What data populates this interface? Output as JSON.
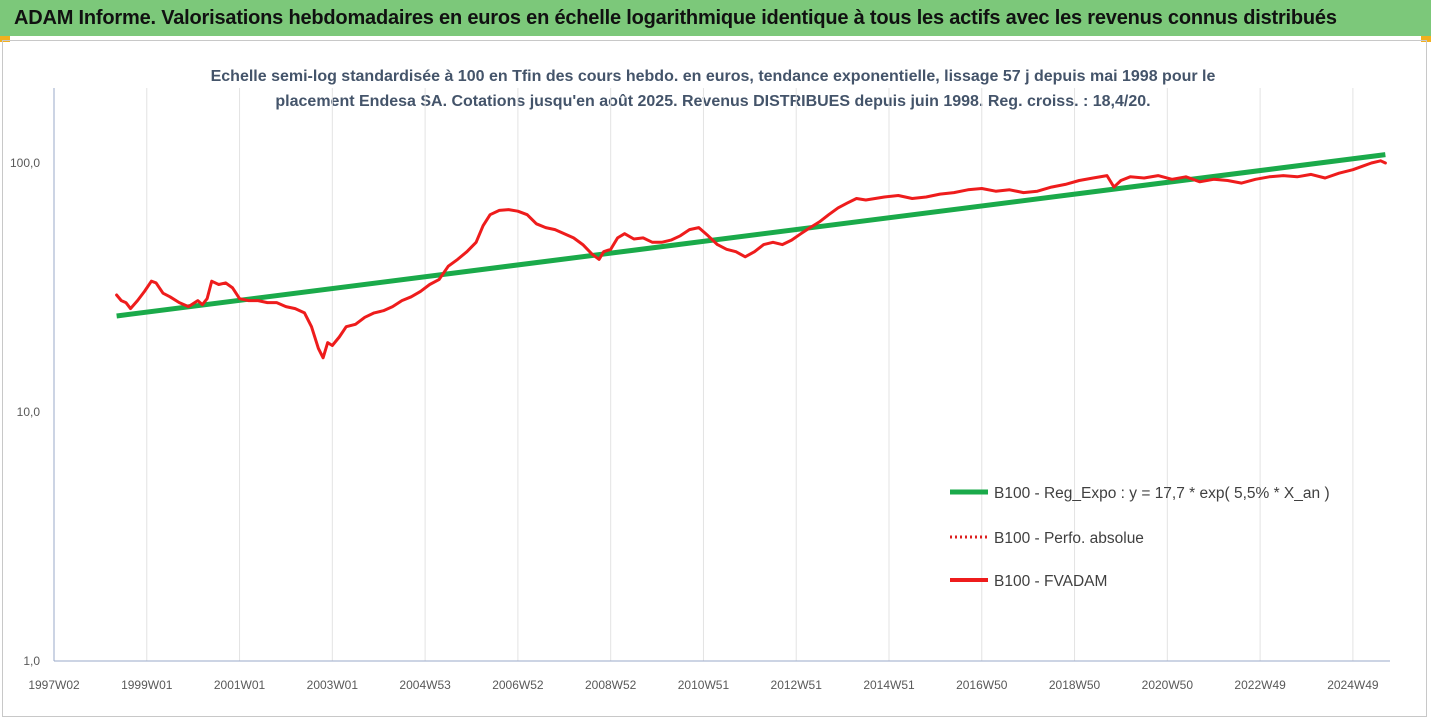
{
  "header": {
    "banner_title": "ADAM Informe. Valorisations hebdomadaires en euros en échelle logarithmique identique à tous les actifs avec les revenus connus distribués"
  },
  "colors": {
    "banner_bg": "#7cc87a",
    "regression": "#1aaa4a",
    "fvadam": "#ee1c1c",
    "perf_absolue": "#dd1f1f",
    "gridline": "#e3e3e3",
    "axis": "#9aa8c8"
  },
  "chart_data": {
    "type": "line",
    "title_lines": [
      "Echelle semi-log standardisée à 100 en Tfin des cours hebdo. en euros, tendance exponentielle, lissage 57 j depuis mai 1998 pour le",
      "placement Endesa SA. Cotations jusqu'en août 2025. Revenus DISTRIBUES depuis juin 1998. Reg. croiss. : 18,4/20."
    ],
    "y_scale": "log",
    "ylim": [
      1,
      200
    ],
    "y_ticks": [
      {
        "value": 1,
        "label": "1,0"
      },
      {
        "value": 10,
        "label": "10,0"
      },
      {
        "value": 100,
        "label": "100,0"
      }
    ],
    "xlim": [
      1997.0,
      2025.8
    ],
    "x_ticks": [
      {
        "value": 1997.0,
        "label": "1997W02"
      },
      {
        "value": 1999.0,
        "label": "1999W01"
      },
      {
        "value": 2001.0,
        "label": "2001W01"
      },
      {
        "value": 2003.0,
        "label": "2003W01"
      },
      {
        "value": 2005.0,
        "label": "2004W53"
      },
      {
        "value": 2007.0,
        "label": "2006W52"
      },
      {
        "value": 2009.0,
        "label": "2008W52"
      },
      {
        "value": 2011.0,
        "label": "2010W51"
      },
      {
        "value": 2013.0,
        "label": "2012W51"
      },
      {
        "value": 2015.0,
        "label": "2014W51"
      },
      {
        "value": 2017.0,
        "label": "2016W50"
      },
      {
        "value": 2019.0,
        "label": "2018W50"
      },
      {
        "value": 2021.0,
        "label": "2020W50"
      },
      {
        "value": 2023.0,
        "label": "2022W49"
      },
      {
        "value": 2025.0,
        "label": "2024W49"
      }
    ],
    "grid": "vertical",
    "legend_position": "bottom-right",
    "series": [
      {
        "name": "B100 - Reg_Expo : y = 17,7 * exp( 5,5% *  X_an )",
        "style": "solid-thick",
        "color": "#1aaa4a",
        "x": [
          1998.35,
          2025.7
        ],
        "y": [
          24.3,
          108
        ]
      },
      {
        "name": "B100 - Perfo. absolue",
        "style": "dotted",
        "color": "#dd1f1f",
        "x": [],
        "y": []
      },
      {
        "name": "B100 - FVADAM",
        "style": "solid",
        "color": "#ee1c1c",
        "x": [
          1998.35,
          1998.45,
          1998.55,
          1998.65,
          1998.8,
          1998.95,
          1999.1,
          1999.2,
          1999.35,
          1999.5,
          1999.7,
          1999.9,
          2000.1,
          2000.2,
          2000.3,
          2000.4,
          2000.55,
          2000.7,
          2000.85,
          2001.0,
          2001.2,
          2001.4,
          2001.6,
          2001.8,
          2002.0,
          2002.2,
          2002.4,
          2002.55,
          2002.7,
          2002.8,
          2002.9,
          2003.0,
          2003.15,
          2003.3,
          2003.5,
          2003.7,
          2003.9,
          2004.1,
          2004.3,
          2004.5,
          2004.7,
          2004.9,
          2005.1,
          2005.3,
          2005.5,
          2005.7,
          2005.9,
          2006.1,
          2006.25,
          2006.4,
          2006.6,
          2006.8,
          2007.0,
          2007.2,
          2007.4,
          2007.6,
          2007.8,
          2008.0,
          2008.2,
          2008.4,
          2008.6,
          2008.75,
          2008.85,
          2009.0,
          2009.15,
          2009.3,
          2009.5,
          2009.7,
          2009.9,
          2010.1,
          2010.3,
          2010.5,
          2010.7,
          2010.9,
          2011.1,
          2011.3,
          2011.5,
          2011.7,
          2011.9,
          2012.1,
          2012.3,
          2012.5,
          2012.7,
          2012.9,
          2013.1,
          2013.3,
          2013.5,
          2013.7,
          2013.9,
          2014.1,
          2014.3,
          2014.5,
          2014.7,
          2014.9,
          2015.2,
          2015.5,
          2015.8,
          2016.1,
          2016.4,
          2016.7,
          2017.0,
          2017.3,
          2017.6,
          2017.9,
          2018.2,
          2018.5,
          2018.8,
          2019.1,
          2019.4,
          2019.7,
          2019.85,
          2020.0,
          2020.2,
          2020.5,
          2020.8,
          2021.1,
          2021.4,
          2021.7,
          2022.0,
          2022.3,
          2022.6,
          2022.9,
          2023.2,
          2023.5,
          2023.8,
          2024.1,
          2024.4,
          2024.7,
          2025.0,
          2025.2,
          2025.4,
          2025.6,
          2025.7
        ],
        "y": [
          29.5,
          28.0,
          27.5,
          26.0,
          28.0,
          30.5,
          33.5,
          33.0,
          30.0,
          29.0,
          27.5,
          26.5,
          28.0,
          27.0,
          28.5,
          33.5,
          32.5,
          33.0,
          31.5,
          28.5,
          28.0,
          28.0,
          27.5,
          27.5,
          26.5,
          26.0,
          25.0,
          22.0,
          18.0,
          16.5,
          19.0,
          18.5,
          20.0,
          22.0,
          22.5,
          24.0,
          25.0,
          25.5,
          26.5,
          28.0,
          29.0,
          30.5,
          32.5,
          34.0,
          38.5,
          41.0,
          44.0,
          48.0,
          56.0,
          62.0,
          64.5,
          65.0,
          64.0,
          62.0,
          57.0,
          55.0,
          54.0,
          52.0,
          50.0,
          47.0,
          43.0,
          41.0,
          44.0,
          45.0,
          50.0,
          52.0,
          49.5,
          50.0,
          48.0,
          48.0,
          49.0,
          51.0,
          54.0,
          55.0,
          51.0,
          47.0,
          45.0,
          44.0,
          42.0,
          44.0,
          47.0,
          48.0,
          47.0,
          49.0,
          52.0,
          55.0,
          58.0,
          62.0,
          66.0,
          69.0,
          72.0,
          71.0,
          72.0,
          73.0,
          74.0,
          72.0,
          73.0,
          75.0,
          76.0,
          78.0,
          79.0,
          77.0,
          78.0,
          76.0,
          77.0,
          80.0,
          82.0,
          85.0,
          87.0,
          89.0,
          80.0,
          85.0,
          88.0,
          87.0,
          89.0,
          86.0,
          88.0,
          84.0,
          86.0,
          85.0,
          83.0,
          86.0,
          88.0,
          89.0,
          88.0,
          90.0,
          87.0,
          91.0,
          94.0,
          97.0,
          100.0,
          102.0,
          100.0
        ]
      }
    ]
  }
}
